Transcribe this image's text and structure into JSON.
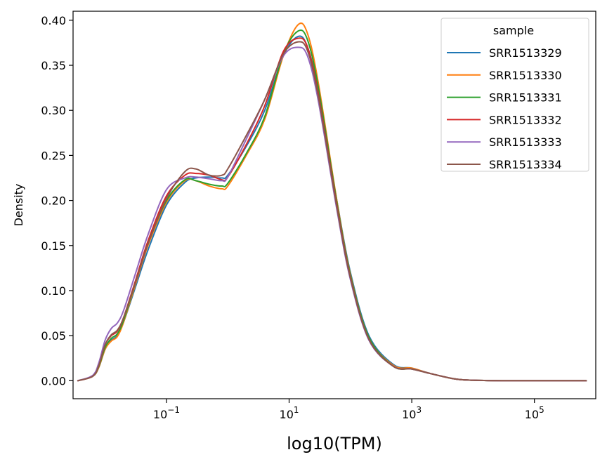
{
  "chart_data": {
    "type": "line",
    "xlabel": "log10(TPM)",
    "ylabel": "Density",
    "xscale": "log",
    "xlim": [
      0.003,
      1000000
    ],
    "ylim": [
      -0.02,
      0.41
    ],
    "grid": false,
    "legend": {
      "title": "sample",
      "placement": "top-right"
    },
    "x_ticks": [
      {
        "value": 0.1,
        "base": "10",
        "exp": "−1"
      },
      {
        "value": 10,
        "base": "10",
        "exp": "1"
      },
      {
        "value": 1000,
        "base": "10",
        "exp": "3"
      },
      {
        "value": 100000,
        "base": "10",
        "exp": "5"
      }
    ],
    "y_ticks": [
      "0.00",
      "0.05",
      "0.10",
      "0.15",
      "0.20",
      "0.25",
      "0.30",
      "0.35",
      "0.40"
    ],
    "x": [
      0.0036,
      0.0063,
      0.0079,
      0.01,
      0.0126,
      0.0158,
      0.02,
      0.0316,
      0.05,
      0.1,
      0.2,
      0.3,
      0.5,
      0.8,
      1,
      2,
      4,
      8,
      14,
      20,
      30,
      60,
      100,
      200,
      500,
      1000,
      2000,
      5000,
      10000,
      30000,
      100000,
      700000
    ],
    "series": [
      {
        "name": "SRR1513329",
        "color": "#1f77b4",
        "values": [
          0.0,
          0.005,
          0.015,
          0.035,
          0.045,
          0.05,
          0.065,
          0.105,
          0.145,
          0.195,
          0.22,
          0.225,
          0.226,
          0.225,
          0.228,
          0.26,
          0.3,
          0.36,
          0.382,
          0.37,
          0.32,
          0.2,
          0.12,
          0.05,
          0.018,
          0.014,
          0.008,
          0.002,
          0.0005,
          0.0,
          0.0,
          0.0
        ]
      },
      {
        "name": "SRR1513330",
        "color": "#ff7f0e",
        "values": [
          0.0,
          0.005,
          0.015,
          0.035,
          0.044,
          0.049,
          0.065,
          0.108,
          0.15,
          0.198,
          0.222,
          0.222,
          0.216,
          0.213,
          0.216,
          0.25,
          0.29,
          0.36,
          0.395,
          0.385,
          0.33,
          0.2,
          0.118,
          0.048,
          0.017,
          0.014,
          0.008,
          0.002,
          0.0005,
          0.0,
          0.0,
          0.0
        ]
      },
      {
        "name": "SRR1513331",
        "color": "#2ca02c",
        "values": [
          0.0,
          0.005,
          0.016,
          0.037,
          0.047,
          0.052,
          0.067,
          0.11,
          0.152,
          0.2,
          0.223,
          0.222,
          0.218,
          0.216,
          0.219,
          0.252,
          0.293,
          0.362,
          0.388,
          0.378,
          0.325,
          0.198,
          0.117,
          0.048,
          0.016,
          0.013,
          0.008,
          0.002,
          0.0005,
          0.0,
          0.0,
          0.0
        ]
      },
      {
        "name": "SRR1513332",
        "color": "#d62728",
        "values": [
          0.0,
          0.005,
          0.017,
          0.04,
          0.05,
          0.055,
          0.07,
          0.112,
          0.155,
          0.205,
          0.228,
          0.23,
          0.228,
          0.223,
          0.226,
          0.262,
          0.305,
          0.365,
          0.38,
          0.37,
          0.318,
          0.195,
          0.115,
          0.046,
          0.016,
          0.013,
          0.008,
          0.002,
          0.0005,
          0.0,
          0.0,
          0.0
        ]
      },
      {
        "name": "SRR1513333",
        "color": "#9467bd",
        "values": [
          0.0,
          0.006,
          0.02,
          0.045,
          0.058,
          0.064,
          0.078,
          0.12,
          0.162,
          0.212,
          0.225,
          0.226,
          0.224,
          0.222,
          0.226,
          0.268,
          0.312,
          0.36,
          0.37,
          0.36,
          0.31,
          0.19,
          0.112,
          0.045,
          0.016,
          0.013,
          0.008,
          0.002,
          0.0005,
          0.0,
          0.0,
          0.0
        ]
      },
      {
        "name": "SRR1513334",
        "color": "#8c564b",
        "values": [
          0.0,
          0.005,
          0.017,
          0.04,
          0.051,
          0.056,
          0.07,
          0.11,
          0.152,
          0.202,
          0.232,
          0.235,
          0.228,
          0.228,
          0.235,
          0.272,
          0.312,
          0.362,
          0.376,
          0.366,
          0.315,
          0.193,
          0.114,
          0.046,
          0.016,
          0.013,
          0.008,
          0.002,
          0.0005,
          0.0,
          0.0,
          0.0
        ]
      }
    ]
  }
}
